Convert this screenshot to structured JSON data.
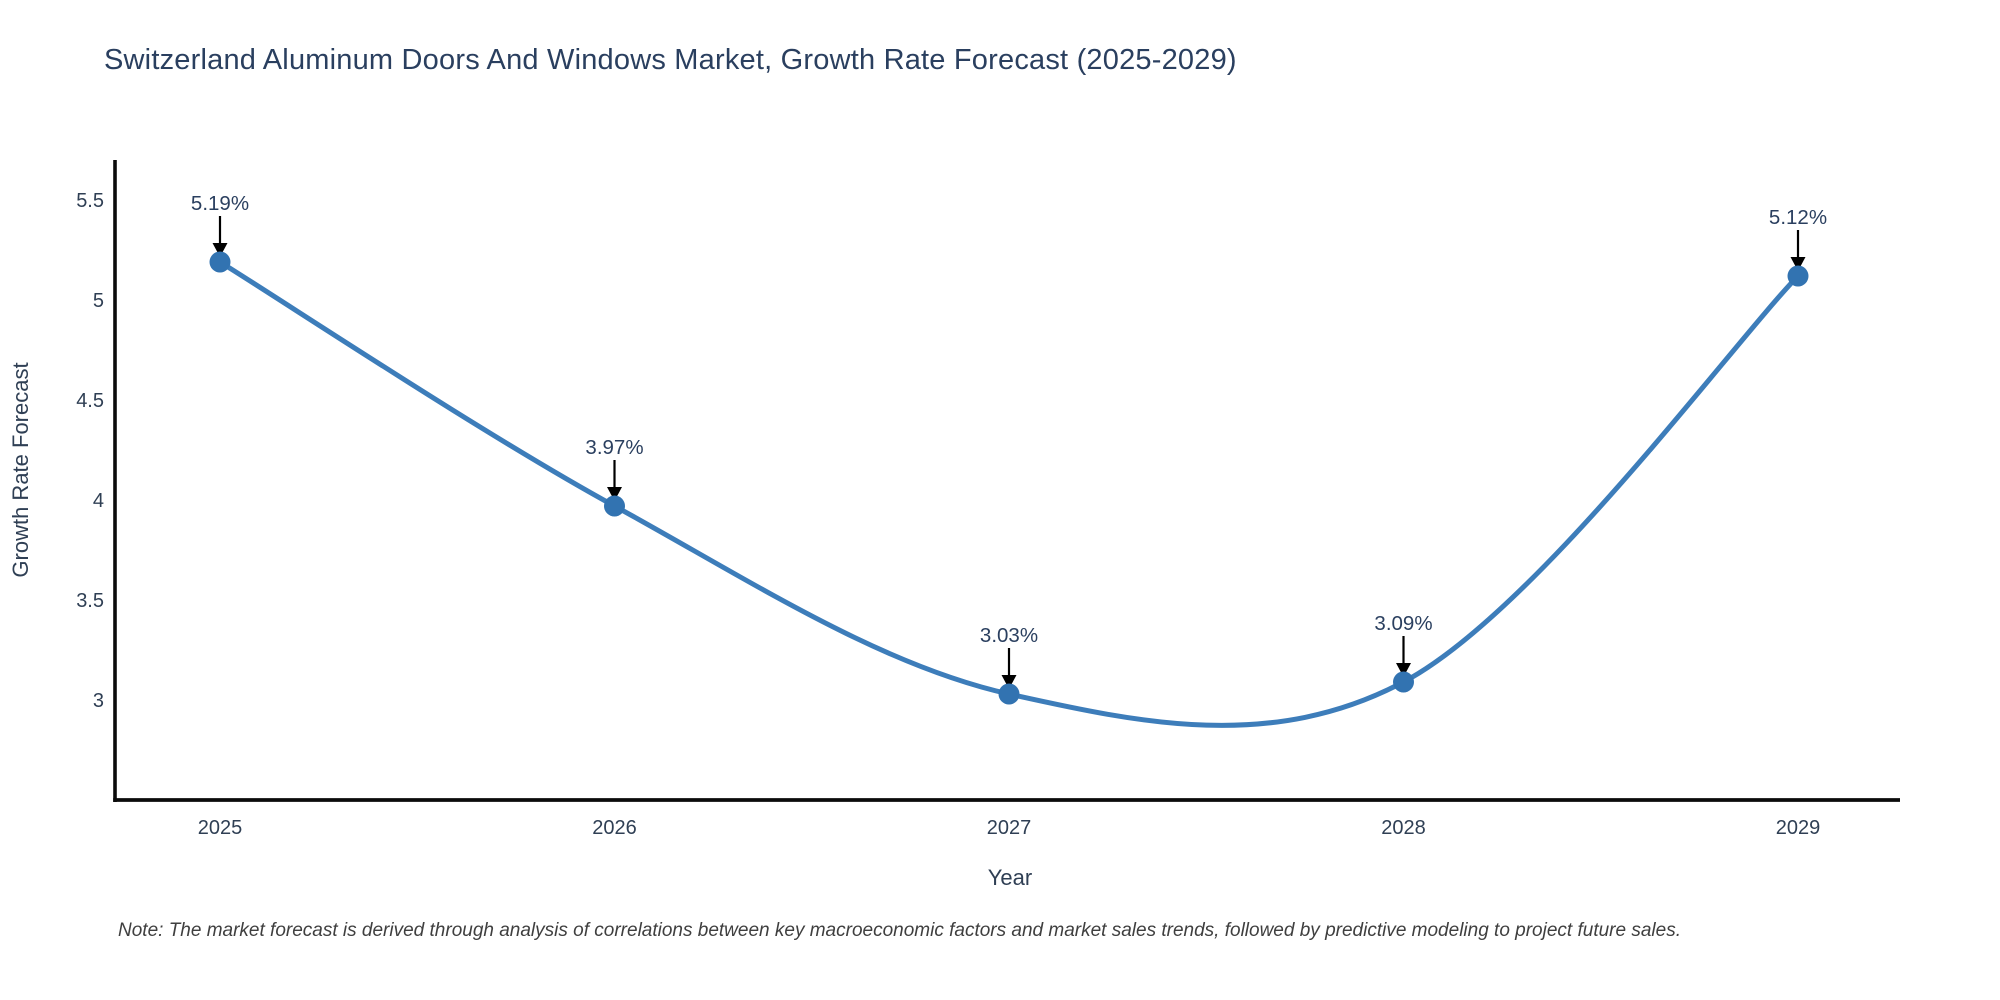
{
  "title": "Switzerland Aluminum Doors And Windows Market, Growth Rate Forecast (2025-2029)",
  "note": "Note: The market forecast is derived through analysis of correlations between key macroeconomic factors and market sales trends, followed by predictive modeling to project future sales.",
  "chart_data": {
    "type": "line",
    "x": [
      "2025",
      "2026",
      "2027",
      "2028",
      "2029"
    ],
    "y": [
      5.19,
      3.97,
      3.03,
      3.09,
      5.12
    ],
    "point_labels": [
      "5.19%",
      "3.97%",
      "3.03%",
      "3.09%",
      "5.12%"
    ],
    "title": "Switzerland Aluminum Doors And Windows Market, Growth Rate Forecast (2025-2029)",
    "xlabel": "Year",
    "ylabel": "Growth Rate Forecast",
    "yticks": [
      3,
      3.5,
      4,
      4.5,
      5,
      5.5
    ],
    "ylim": [
      2.5,
      5.7
    ],
    "line_shape": "spline",
    "grid": false,
    "legend": "none",
    "annotations_have_arrows": true,
    "colors": {
      "line": "#3d7dba",
      "marker": "#3273b1",
      "arrow": "#000000",
      "axis_line": "#0b0b0b",
      "title_text": "#2a3f5f",
      "tick_text": "#2f3f54",
      "note_text": "#3f3f3f"
    }
  }
}
